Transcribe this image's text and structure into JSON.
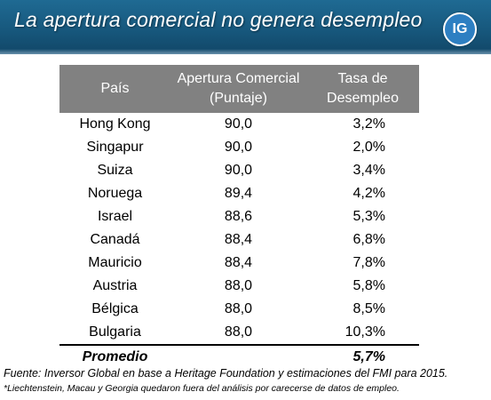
{
  "header": {
    "title": "La apertura comercial no genera desempleo",
    "logo_text": "IG",
    "colors": {
      "banner": "#17587d",
      "logo": "#2d7fc2",
      "table_header": "#818181"
    }
  },
  "chart_data": {
    "type": "table",
    "columns": [
      "País",
      "Apertura Comercial\n(Puntaje)",
      "Tasa de\nDesempleo"
    ],
    "rows": [
      [
        "Hong Kong",
        "90,0",
        "3,2%"
      ],
      [
        "Singapur",
        "90,0",
        "2,0%"
      ],
      [
        "Suiza",
        "90,0",
        "3,4%"
      ],
      [
        "Noruega",
        "89,4",
        "4,2%"
      ],
      [
        "Israel",
        "88,6",
        "5,3%"
      ],
      [
        "Canadá",
        "88,4",
        "6,8%"
      ],
      [
        "Mauricio",
        "88,4",
        "7,8%"
      ],
      [
        "Austria",
        "88,0",
        "5,8%"
      ],
      [
        "Bélgica",
        "88,0",
        "8,5%"
      ],
      [
        "Bulgaria",
        "88,0",
        "10,3%"
      ]
    ],
    "average": {
      "label": "Promedio",
      "value": "5,7%"
    }
  },
  "footer": {
    "source": "Fuente: Inversor Global en base a Heritage Foundation y estimaciones del FMI para 2015.",
    "note": "*Liechtenstein, Macau y Georgia quedaron fuera del análisis por carecerse de datos de empleo."
  }
}
